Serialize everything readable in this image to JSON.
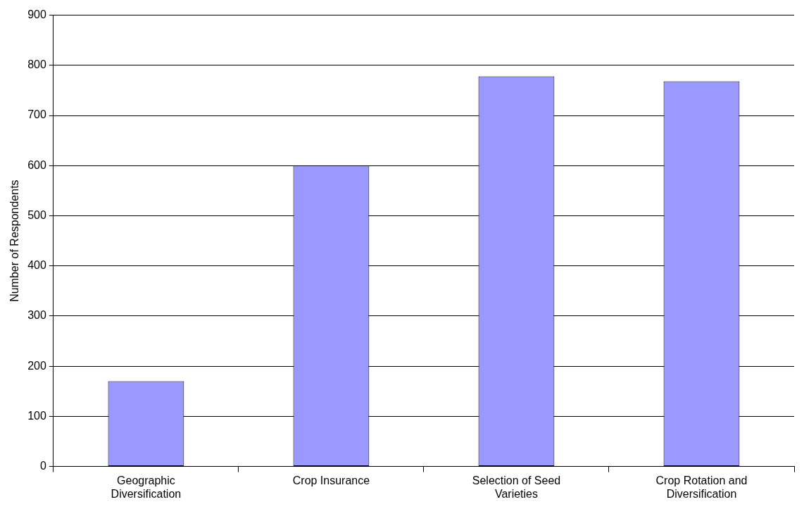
{
  "chart_data": {
    "type": "bar",
    "ylabel": "Number of Respondents",
    "categories": [
      "Geographic Diversification",
      "Crop Insurance",
      "Selection of Seed Varieties",
      "Crop Rotation and Diversification"
    ],
    "values": [
      170,
      600,
      778,
      768
    ],
    "color": "#9999ff",
    "ylim": [
      0,
      900
    ],
    "yticks": [
      0,
      100,
      200,
      300,
      400,
      500,
      600,
      700,
      800,
      900
    ],
    "grid": "y",
    "legend": false
  }
}
